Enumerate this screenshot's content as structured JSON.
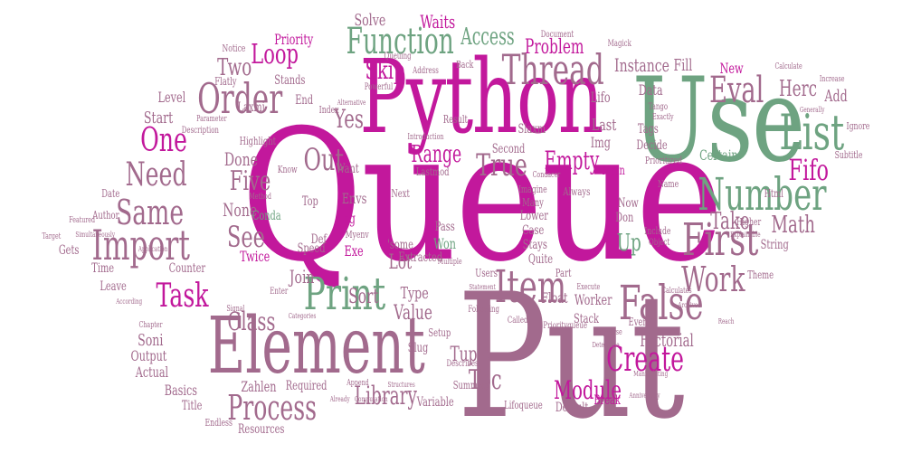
{
  "words": {
    "queue": "Queue",
    "put": "Put",
    "python": "Python",
    "use": "Use",
    "element": "Element",
    "list": "List",
    "number": "Number",
    "first": "First",
    "false": "False",
    "print": "Print",
    "import": "Import",
    "item": "Item",
    "thread": "Thread",
    "function": "Function",
    "order": "Order",
    "process": "Process",
    "same": "Same",
    "task": "Task",
    "create": "Create",
    "work": "Work",
    "eval": "Eval",
    "fifo": "Fifo",
    "need": "Need",
    "one": "One",
    "five": "Five",
    "see": "See",
    "class": "Class",
    "true": "True",
    "module": "Module",
    "loop": "Loop",
    "two": "Two",
    "out": "Out",
    "range": "Range",
    "empty": "Empty",
    "toc": "Toc",
    "library": "Library",
    "take": "Take",
    "math": "Math",
    "skip": "Skip",
    "yes": "Yes",
    "access": "Access",
    "instance": "Instance",
    "problem": "Problem",
    "lot": "Lot",
    "sort": "Sort",
    "value": "Value",
    "tuple": "Tuple",
    "join": "Join",
    "up": "Up",
    "herc": "Herc",
    "fill": "Fill",
    "waits": "Waits",
    "solve": "Solve",
    "priority": "Priority",
    "none": "None",
    "done": "Done",
    "start": "Start",
    "level": "Level",
    "factorial": "Factorial",
    "certain": "Certain",
    "last": "Last",
    "lifo": "Lifo",
    "img": "Img",
    "type": "Type",
    "float": "Float",
    "worker": "Worker",
    "stack": "Stack",
    "soni": "Soni",
    "output": "Output",
    "actual": "Actual",
    "basics": "Basics",
    "title": "Title",
    "zahlen": "Zahlen",
    "required": "Required",
    "resources": "Resources",
    "endless": "Endless",
    "speed": "Speed",
    "counter": "Counter",
    "time": "Time",
    "leave": "Leave",
    "gets": "Gets",
    "twice": "Twice",
    "exe": "Exe",
    "def": "Def",
    "jpg": "Jpg",
    "envs": "Envs",
    "conda": "Conda",
    "top": "Top",
    "won": "Won",
    "pass": "Pass",
    "extracted": "Extracted",
    "some": "'some",
    "slug": "Slug",
    "variable": "Variable",
    "summary": "Summary",
    "lifoqueue": "Lifoqueue",
    "default": "Default",
    "break": "Break",
    "main": "Main",
    "now": "Now",
    "don": "Don",
    "second": "Second",
    "result": "Result",
    "want": "Want",
    "next": "Next",
    "stays": "Stays",
    "quite": "Quite",
    "part": "Part",
    "users": "Users",
    "setup": "Setup",
    "even": "Even",
    "new": "New",
    "data": "Data",
    "add": "Add",
    "tags": "Tags",
    "decide": "Decide",
    "html": "Html",
    "string": "String",
    "end": "End",
    "stands": "Stands",
    "flatly": "Flatly",
    "notice": "Notice",
    "author": "Author",
    "date": "Date",
    "lower": "Lower",
    "case": "Case",
    "many": "Many",
    "imagine": "Imagine",
    "slaxm": "Slaxm",
    "lastmod": "Lastmod",
    "myenv": "Myenv",
    "index": "Index",
    "laxmi": "Laxmi",
    "highlight": "Highlight",
    "know": "Know",
    "theme": "Theme",
    "name": "Name",
    "include": "Include",
    "object": "Object",
    "always": "Always",
    "higher": "Higher",
    "subtitle": "Subtitle",
    "ignore": "Ignore",
    "back": "Back",
    "address": "Address",
    "queuing": "Queuing",
    "powerful": "Powerful",
    "magick": "Magick",
    "document": "Document",
    "tango": "Tango",
    "exactly": "Exactly",
    "prioritized": "Prioritized",
    "increase": "Increase",
    "calculate": "Calculate",
    "generally": "Generally",
    "description": "Description",
    "parameter": "Parameter",
    "featured": "Featured",
    "simultaneously": "Simultaneously",
    "target": "Target",
    "application": "Application",
    "method": "Method",
    "signal": "Signal",
    "according": "According",
    "categories": "Categories",
    "chapter": "Chapter",
    "enter": "Enter",
    "following": "Following",
    "statement": "Statement",
    "called": "Called",
    "priorityqueue": "Priorityqueue",
    "execute": "Execute",
    "calculates": "Calculates",
    "archived": "Archived",
    "tidyverse": "Tidyverse",
    "determine": "Determine",
    "describes": "Describes",
    "append": "Append",
    "structures": "Structures",
    "already": "Already",
    "computation": "Computation",
    "anniversary": "Anniversary",
    "manipulating": "Manipulating",
    "explainable": "Explainable",
    "multiple": "Multiple",
    "condacer": "Condacer",
    "introduction": "Introduction",
    "alternative": "Alternative",
    "reach": "Reach"
  },
  "palette": {
    "magenta": "#c2189c",
    "green": "#6ea381",
    "mauve": "#a26a8d",
    "pink": "#c98ab8"
  }
}
